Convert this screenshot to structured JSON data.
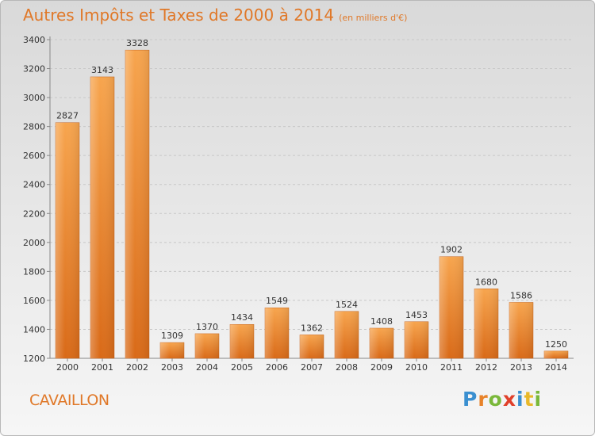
{
  "chart_data": {
    "type": "bar",
    "title": "Autres Impôts et Taxes de 2000 à 2014",
    "subtitle": "(en milliers d'€)",
    "categories": [
      "2000",
      "2001",
      "2002",
      "2003",
      "2004",
      "2005",
      "2006",
      "2007",
      "2008",
      "2009",
      "2010",
      "2011",
      "2012",
      "2013",
      "2014"
    ],
    "values": [
      2827,
      3143,
      3328,
      1309,
      1370,
      1434,
      1549,
      1362,
      1524,
      1408,
      1453,
      1902,
      1680,
      1586,
      1250
    ],
    "ylim": [
      1200,
      3400
    ],
    "yticks": [
      1200,
      1400,
      1600,
      1800,
      2000,
      2200,
      2400,
      2600,
      2800,
      3000,
      3200,
      3400
    ],
    "xlabel": "",
    "ylabel": "",
    "grid": true,
    "bar_color": "#e8842e"
  },
  "footer": {
    "city": "CAVAILLON",
    "logo_text": "Proxiti"
  },
  "colors": {
    "title": "#e07828",
    "logo": [
      "#3a8fd0",
      "#e8832a",
      "#7ab83a",
      "#e0402a",
      "#3a8fd0",
      "#e8b82a",
      "#7ab83a"
    ]
  }
}
